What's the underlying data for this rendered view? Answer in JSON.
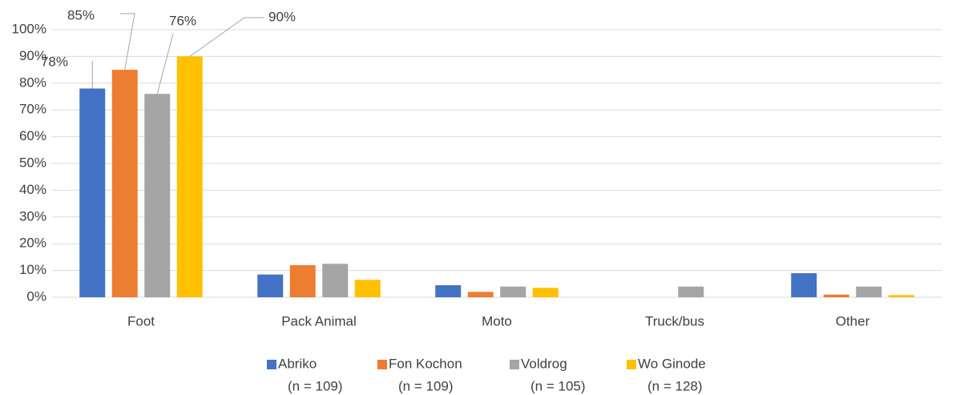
{
  "chart_data": {
    "type": "bar",
    "categories": [
      "Foot",
      "Pack Animal",
      "Moto",
      "Truck/bus",
      "Other"
    ],
    "series": [
      {
        "name": "Abriko",
        "sample": "(n = 109)",
        "color": "#4472c4",
        "values": [
          78,
          8.5,
          4.5,
          0,
          9
        ],
        "value_labels": [
          "78%",
          null,
          null,
          null,
          null
        ]
      },
      {
        "name": "Fon Kochon",
        "sample": "(n = 109)",
        "color": "#ed7d31",
        "values": [
          85,
          12,
          2,
          0,
          1
        ],
        "value_labels": [
          "85%",
          null,
          null,
          null,
          null
        ]
      },
      {
        "name": "Voldrog",
        "sample": "(n = 105)",
        "color": "#a5a5a5",
        "values": [
          76,
          12.5,
          4,
          4,
          4
        ],
        "value_labels": [
          "76%",
          null,
          null,
          null,
          null
        ]
      },
      {
        "name": "Wo Ginode",
        "sample": "(n = 128)",
        "color": "#ffc000",
        "values": [
          90,
          6.5,
          3.5,
          0,
          0.8
        ],
        "value_labels": [
          "90%",
          null,
          null,
          null,
          null
        ]
      }
    ],
    "ylim": [
      0,
      100
    ],
    "yticks": [
      {
        "value": 0,
        "label": "0%"
      },
      {
        "value": 10,
        "label": "10%"
      },
      {
        "value": 20,
        "label": "20%"
      },
      {
        "value": 30,
        "label": "30%"
      },
      {
        "value": 40,
        "label": "40%"
      },
      {
        "value": 50,
        "label": "50%"
      },
      {
        "value": 60,
        "label": "60%"
      },
      {
        "value": 70,
        "label": "70%"
      },
      {
        "value": 80,
        "label": "80%"
      },
      {
        "value": 90,
        "label": "90%"
      },
      {
        "value": 100,
        "label": "100%"
      }
    ],
    "grid": true,
    "legend": "bottom"
  }
}
